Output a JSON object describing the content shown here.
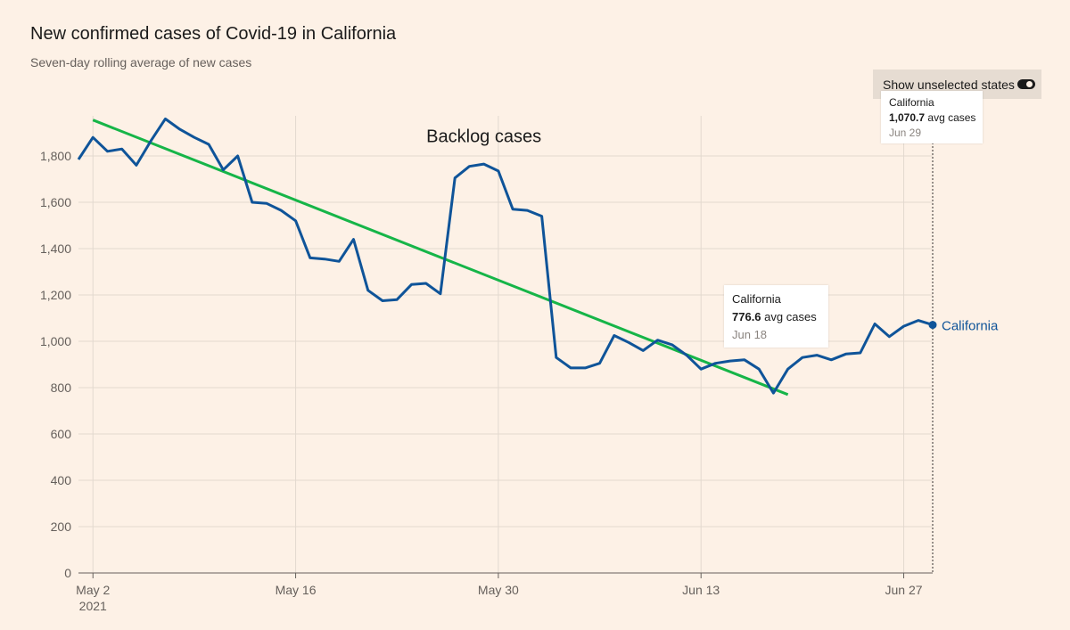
{
  "header": {
    "title": "New confirmed cases of Covid-19 in California",
    "subtitle": "Seven-day rolling average of new cases"
  },
  "controls": {
    "toggle_label": "Show unselected states",
    "toggle_on": true
  },
  "tooltips": [
    {
      "name": "California",
      "value": "1,070.7",
      "unit": "avg cases",
      "date": "Jun 29"
    },
    {
      "name": "California",
      "value": "776.6",
      "unit": "avg cases",
      "date": "Jun 18"
    }
  ],
  "colors": {
    "background": "#fdf1e6",
    "line": "#0f5499",
    "trend": "#16b548",
    "grid": "#e3d9cf"
  },
  "chart_data": {
    "type": "line",
    "title": "New confirmed cases of Covid-19 in California",
    "subtitle": "Seven-day rolling average of new cases",
    "ylim": [
      0,
      1900
    ],
    "yticks": [
      0,
      200,
      400,
      600,
      800,
      1000,
      1200,
      1400,
      1600,
      1800
    ],
    "ytick_labels": [
      "0",
      "200",
      "400",
      "600",
      "800",
      "1,000",
      "1,200",
      "1,400",
      "1,600",
      "1,800"
    ],
    "x_start": "2021-05-01",
    "x_end": "2021-06-29",
    "xticks": [
      {
        "date": "2021-05-02",
        "label": "May 2",
        "sublabel": "2021"
      },
      {
        "date": "2021-05-16",
        "label": "May 16",
        "sublabel": ""
      },
      {
        "date": "2021-05-30",
        "label": "May 30",
        "sublabel": ""
      },
      {
        "date": "2021-06-13",
        "label": "Jun 13",
        "sublabel": ""
      },
      {
        "date": "2021-06-27",
        "label": "Jun 27",
        "sublabel": ""
      }
    ],
    "grid": true,
    "series": [
      {
        "name": "California",
        "x": [
          "2021-05-01",
          "2021-05-02",
          "2021-05-03",
          "2021-05-04",
          "2021-05-05",
          "2021-05-06",
          "2021-05-07",
          "2021-05-08",
          "2021-05-09",
          "2021-05-10",
          "2021-05-11",
          "2021-05-12",
          "2021-05-13",
          "2021-05-14",
          "2021-05-15",
          "2021-05-16",
          "2021-05-17",
          "2021-05-18",
          "2021-05-19",
          "2021-05-20",
          "2021-05-21",
          "2021-05-22",
          "2021-05-23",
          "2021-05-24",
          "2021-05-25",
          "2021-05-26",
          "2021-05-27",
          "2021-05-28",
          "2021-05-29",
          "2021-05-30",
          "2021-05-31",
          "2021-06-01",
          "2021-06-02",
          "2021-06-03",
          "2021-06-04",
          "2021-06-05",
          "2021-06-06",
          "2021-06-07",
          "2021-06-08",
          "2021-06-09",
          "2021-06-10",
          "2021-06-11",
          "2021-06-12",
          "2021-06-13",
          "2021-06-14",
          "2021-06-15",
          "2021-06-16",
          "2021-06-17",
          "2021-06-18",
          "2021-06-19",
          "2021-06-20",
          "2021-06-21",
          "2021-06-22",
          "2021-06-23",
          "2021-06-24",
          "2021-06-25",
          "2021-06-26",
          "2021-06-27",
          "2021-06-28",
          "2021-06-29"
        ],
        "values": [
          1785,
          1880,
          1820,
          1830,
          1760,
          1865,
          1960,
          1915,
          1880,
          1850,
          1740,
          1800,
          1600,
          1595,
          1565,
          1520,
          1360,
          1355,
          1345,
          1440,
          1220,
          1175,
          1180,
          1245,
          1250,
          1205,
          1705,
          1755,
          1765,
          1735,
          1570,
          1565,
          1540,
          930,
          885,
          885,
          905,
          1025,
          995,
          960,
          1005,
          985,
          940,
          880,
          905,
          915,
          920,
          880,
          776.6,
          880,
          930,
          940,
          920,
          945,
          950,
          1075,
          1020,
          1065,
          1090,
          1070.7
        ]
      }
    ],
    "trendline": {
      "x": [
        "2021-05-02",
        "2021-06-19"
      ],
      "values": [
        1955,
        770
      ]
    },
    "annotations": [
      {
        "text": "Backlog cases",
        "x": "2021-05-29",
        "y": 1860
      }
    ],
    "end_label": "California"
  }
}
